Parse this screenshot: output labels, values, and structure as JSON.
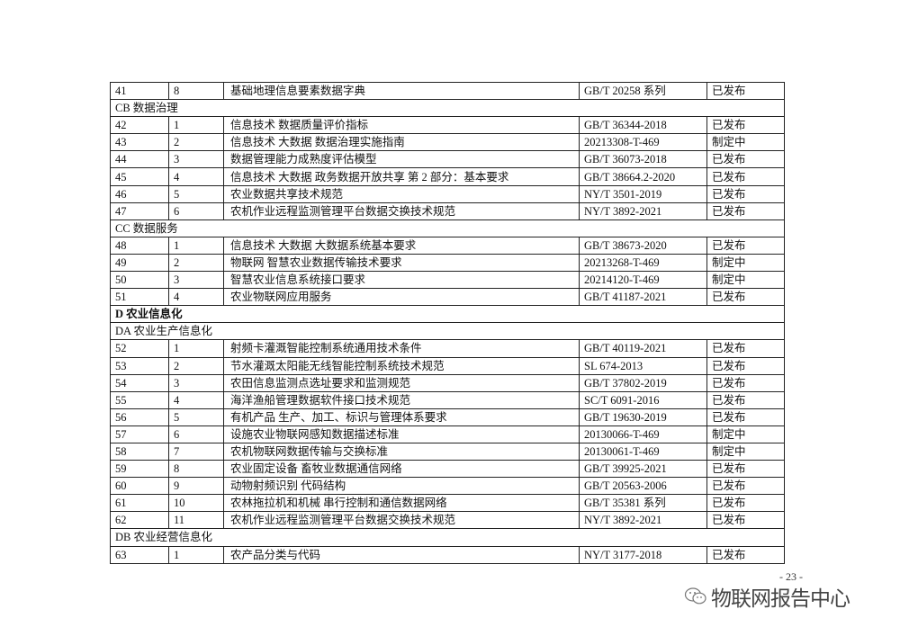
{
  "rows": [
    {
      "type": "data",
      "no": "41",
      "sub": "8",
      "name": "基础地理信息要素数据字典",
      "code": "GB/T 20258 系列",
      "status": "已发布"
    },
    {
      "type": "section",
      "label": "CB 数据治理"
    },
    {
      "type": "data",
      "no": "42",
      "sub": "1",
      "name": "信息技术  数据质量评价指标",
      "code": "GB/T 36344-2018",
      "status": "已发布"
    },
    {
      "type": "data",
      "no": "43",
      "sub": "2",
      "name": "信息技术  大数据  数据治理实施指南",
      "code": "20213308-T-469",
      "status": "制定中"
    },
    {
      "type": "data",
      "no": "44",
      "sub": "3",
      "name": "数据管理能力成熟度评估模型",
      "code": "GB/T 36073-2018",
      "status": "已发布"
    },
    {
      "type": "data",
      "no": "45",
      "sub": "4",
      "name": "信息技术  大数据  政务数据开放共享  第 2 部分：基本要求",
      "code": "GB/T 38664.2-2020",
      "status": "已发布"
    },
    {
      "type": "data",
      "no": "46",
      "sub": "5",
      "name": "农业数据共享技术规范",
      "code": "NY/T 3501-2019",
      "status": "已发布"
    },
    {
      "type": "data",
      "no": "47",
      "sub": "6",
      "name": "农机作业远程监测管理平台数据交换技术规范",
      "code": "NY/T 3892-2021",
      "status": "已发布"
    },
    {
      "type": "section",
      "label": "CC 数据服务"
    },
    {
      "type": "data",
      "no": "48",
      "sub": "1",
      "name": "信息技术  大数据  大数据系统基本要求",
      "code": "GB/T 38673-2020",
      "status": "已发布"
    },
    {
      "type": "data",
      "no": "49",
      "sub": "2",
      "name": "物联网  智慧农业数据传输技术要求",
      "code": "20213268-T-469",
      "status": "制定中"
    },
    {
      "type": "data",
      "no": "50",
      "sub": "3",
      "name": "智慧农业信息系统接口要求",
      "code": "20214120-T-469",
      "status": "制定中"
    },
    {
      "type": "data",
      "no": "51",
      "sub": "4",
      "name": "农业物联网应用服务",
      "code": "GB/T 41187-2021",
      "status": "已发布"
    },
    {
      "type": "section",
      "label": "D 农业信息化",
      "bold": true
    },
    {
      "type": "section",
      "label": "DA 农业生产信息化"
    },
    {
      "type": "data",
      "no": "52",
      "sub": "1",
      "name": "射频卡灌溉智能控制系统通用技术条件",
      "code": "GB/T 40119-2021",
      "status": "已发布"
    },
    {
      "type": "data",
      "no": "53",
      "sub": "2",
      "name": "节水灌溉太阳能无线智能控制系统技术规范",
      "code": "SL 674-2013",
      "status": "已发布"
    },
    {
      "type": "data",
      "no": "54",
      "sub": "3",
      "name": "农田信息监测点选址要求和监测规范",
      "code": "GB/T 37802-2019",
      "status": "已发布"
    },
    {
      "type": "data",
      "no": "55",
      "sub": "4",
      "name": "海洋渔船管理数据软件接口技术规范",
      "code": "SC/T 6091-2016",
      "status": "已发布"
    },
    {
      "type": "data",
      "no": "56",
      "sub": "5",
      "name": "有机产品  生产、加工、标识与管理体系要求",
      "code": "GB/T 19630-2019",
      "status": "已发布"
    },
    {
      "type": "data",
      "no": "57",
      "sub": "6",
      "name": "设施农业物联网感知数据描述标准",
      "code": "20130066-T-469",
      "status": "制定中"
    },
    {
      "type": "data",
      "no": "58",
      "sub": "7",
      "name": "农机物联网数据传输与交换标准",
      "code": "20130061-T-469",
      "status": "制定中"
    },
    {
      "type": "data",
      "no": "59",
      "sub": "8",
      "name": "农业固定设备  畜牧业数据通信网络",
      "code": "GB/T 39925-2021",
      "status": "已发布"
    },
    {
      "type": "data",
      "no": "60",
      "sub": "9",
      "name": "动物射频识别  代码结构",
      "code": "GB/T 20563-2006",
      "status": "已发布"
    },
    {
      "type": "data",
      "no": "61",
      "sub": "10",
      "name": "农林拖拉机和机械  串行控制和通信数据网络",
      "code": "GB/T 35381 系列",
      "status": "已发布"
    },
    {
      "type": "data",
      "no": "62",
      "sub": "11",
      "name": "农机作业远程监测管理平台数据交换技术规范",
      "code": "NY/T 3892-2021",
      "status": "已发布"
    },
    {
      "type": "section",
      "label": "DB 农业经营信息化"
    },
    {
      "type": "data",
      "no": "63",
      "sub": "1",
      "name": "农产品分类与代码",
      "code": "NY/T 3177-2018",
      "status": "已发布"
    }
  ],
  "footer": {
    "page_number": "- 23 -"
  },
  "watermark": {
    "text": "物联网报告中心",
    "icon": "wechat-icon"
  }
}
